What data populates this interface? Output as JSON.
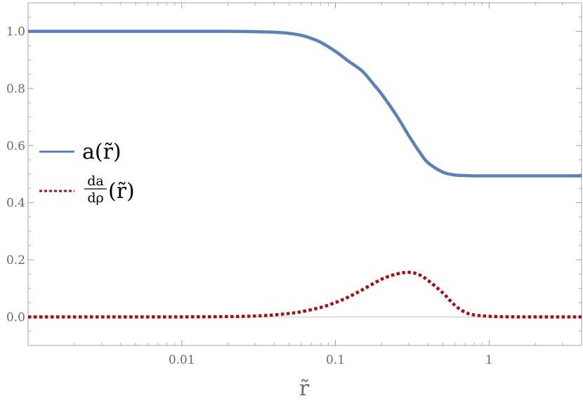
{
  "chart_data": {
    "type": "line",
    "xlabel": "r̃",
    "ylabel": "",
    "xscale": "log",
    "xlim": [
      0.001,
      4
    ],
    "ylim": [
      -0.1,
      1.1
    ],
    "x_ticks": [
      {
        "value": 0.01,
        "label": "0.01"
      },
      {
        "value": 0.1,
        "label": "0.1"
      },
      {
        "value": 1,
        "label": "1"
      }
    ],
    "y_ticks": [
      {
        "value": 0.0,
        "label": "0.0"
      },
      {
        "value": 0.2,
        "label": "0.2"
      },
      {
        "value": 0.4,
        "label": "0.4"
      },
      {
        "value": 0.6,
        "label": "0.6"
      },
      {
        "value": 0.8,
        "label": "0.8"
      },
      {
        "value": 1.0,
        "label": "1.0"
      }
    ],
    "zero_line": true,
    "legend_placement": "left",
    "series": [
      {
        "name": "a(r̃)",
        "style": "solid",
        "color": "#5e81b5",
        "x": [
          0.001,
          0.005,
          0.01,
          0.02,
          0.03,
          0.04,
          0.05,
          0.06,
          0.07,
          0.08,
          0.1,
          0.12,
          0.15,
          0.18,
          0.2,
          0.25,
          0.3,
          0.35,
          0.4,
          0.5,
          0.6,
          0.7,
          0.8,
          1.0,
          1.5,
          2,
          3,
          4
        ],
        "y": [
          1.0,
          1.0,
          1.0,
          1.0,
          0.999,
          0.997,
          0.993,
          0.986,
          0.975,
          0.962,
          0.93,
          0.898,
          0.86,
          0.81,
          0.78,
          0.705,
          0.635,
          0.58,
          0.54,
          0.507,
          0.497,
          0.495,
          0.494,
          0.494,
          0.494,
          0.494,
          0.494,
          0.494
        ]
      },
      {
        "name": "da/dρ (r̃)",
        "style": "dotted",
        "color": "#a50f15",
        "x": [
          0.001,
          0.005,
          0.01,
          0.02,
          0.03,
          0.04,
          0.05,
          0.06,
          0.08,
          0.1,
          0.12,
          0.15,
          0.2,
          0.25,
          0.3,
          0.35,
          0.4,
          0.5,
          0.6,
          0.7,
          0.8,
          1.0,
          1.5,
          2,
          3,
          4
        ],
        "y": [
          0,
          0,
          0,
          0.001,
          0.003,
          0.007,
          0.012,
          0.018,
          0.033,
          0.05,
          0.068,
          0.095,
          0.132,
          0.15,
          0.156,
          0.148,
          0.128,
          0.084,
          0.04,
          0.016,
          0.007,
          0.002,
          0,
          0,
          0,
          0
        ]
      }
    ],
    "legend": {
      "entry1_label": "a(r̃)",
      "entry2_num": "da",
      "entry2_den": "dρ",
      "entry2_suffix": "(r̃)"
    }
  }
}
